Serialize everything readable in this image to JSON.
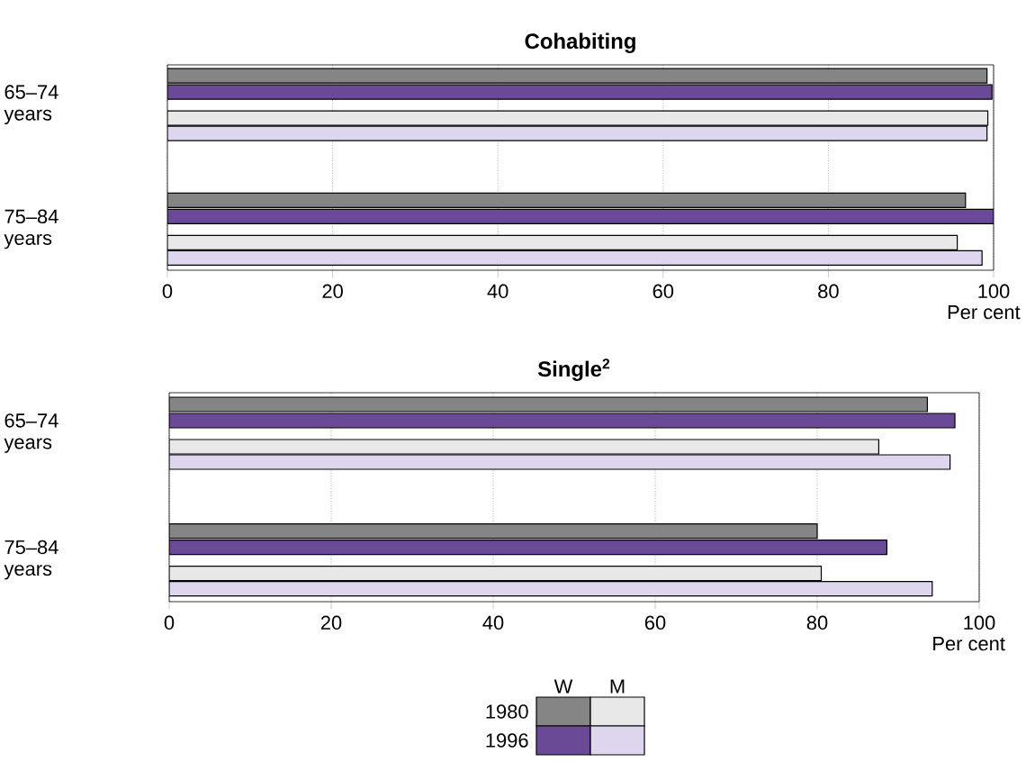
{
  "chart_data": [
    {
      "type": "bar",
      "orientation": "horizontal",
      "title": "Cohabiting",
      "xlabel": "Per cent",
      "categories": [
        "65–74 years",
        "75–84 years"
      ],
      "xlim": [
        0,
        100
      ],
      "xticks": [
        0,
        20,
        40,
        60,
        80,
        100
      ],
      "grid": "x",
      "series": [
        {
          "color": "#858585",
          "values": [
            99.2,
            96.6
          ]
        },
        {
          "color": "#6a4a96",
          "values": [
            99.8,
            100
          ]
        },
        {
          "color": "#e8e8e8",
          "values": [
            99.3,
            95.6
          ]
        },
        {
          "color": "#ded6ee",
          "values": [
            99.2,
            98.6
          ]
        }
      ]
    },
    {
      "type": "bar",
      "orientation": "horizontal",
      "title": "Single$^{2}$",
      "xlabel": "Per cent",
      "categories": [
        "65–74 years",
        "75–84 years"
      ],
      "xlim": [
        0,
        100
      ],
      "xticks": [
        0,
        20,
        40,
        60,
        80,
        100
      ],
      "grid": "x",
      "annotations": [
        "W",
        "M",
        "1980",
        "1996"
      ],
      "series": [
        {
          "color": "#858585",
          "values": [
            93.6,
            80.0
          ]
        },
        {
          "color": "#6a4a96",
          "values": [
            97.0,
            88.6
          ]
        },
        {
          "color": "#e8e8e8",
          "values": [
            87.6,
            80.5
          ]
        },
        {
          "color": "#ded6ee",
          "values": [
            96.4,
            94.2
          ]
        }
      ]
    }
  ]
}
